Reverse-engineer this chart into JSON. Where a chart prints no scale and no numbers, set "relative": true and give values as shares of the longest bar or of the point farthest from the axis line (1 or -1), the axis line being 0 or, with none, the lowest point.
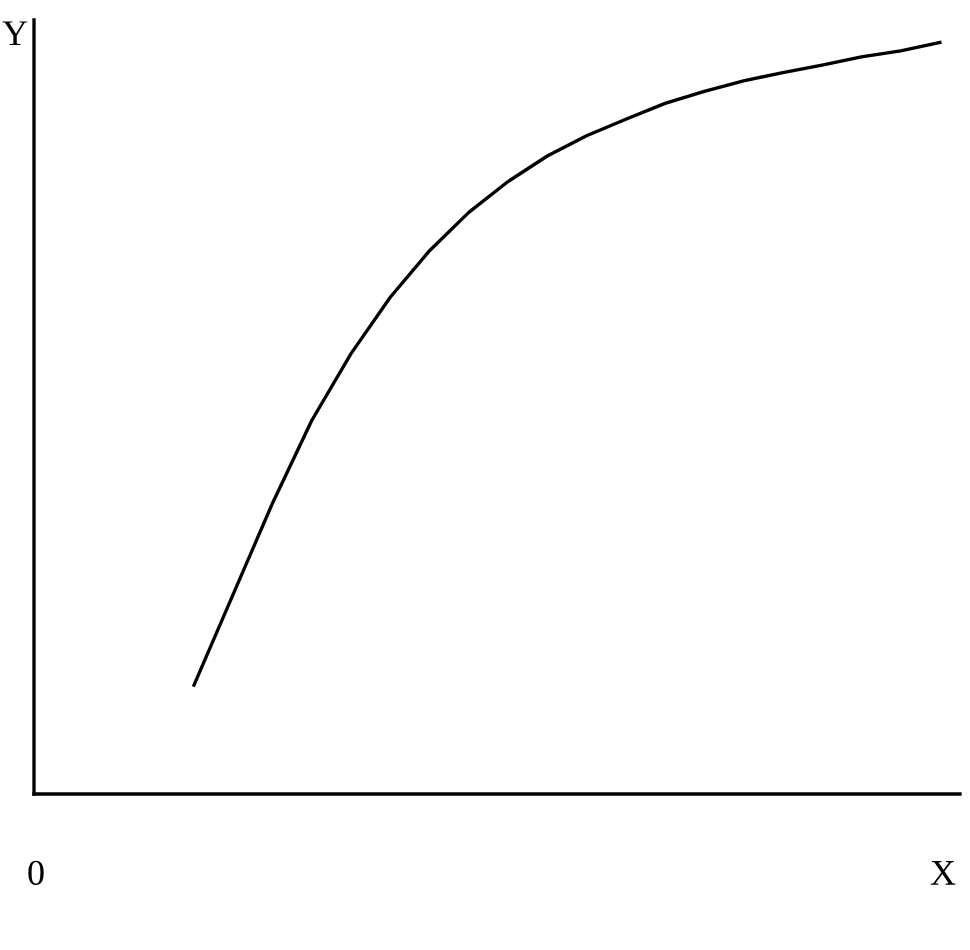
{
  "chart_data": {
    "type": "line",
    "relative": true,
    "xlabel": "X",
    "ylabel": "Y",
    "annotations": [
      "0"
    ],
    "color": "#000000",
    "categories": [
      null,
      null,
      null,
      null,
      null,
      null,
      null,
      null,
      null,
      null,
      null,
      null,
      null,
      null,
      null,
      null,
      null,
      null,
      null,
      null
    ],
    "values": [
      0.145,
      0.266,
      0.387,
      0.497,
      0.586,
      0.661,
      0.723,
      0.774,
      0.815,
      0.849,
      0.876,
      0.898,
      0.919,
      0.935,
      0.949,
      0.96,
      0.97,
      0.981,
      0.989,
      1
    ],
    "marker": "none",
    "line_style": "solid",
    "grid": false,
    "legend": false
  }
}
